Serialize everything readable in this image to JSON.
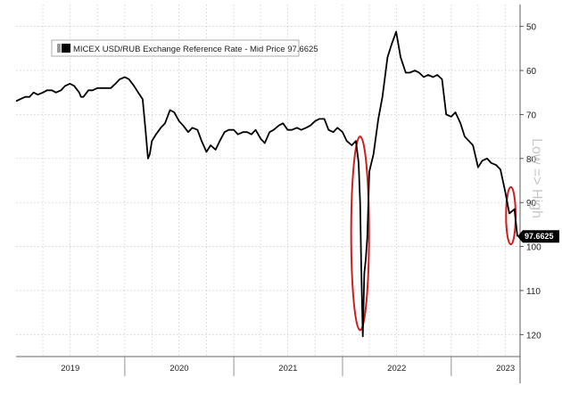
{
  "chart_data": {
    "type": "line",
    "legend": {
      "label": "MICEX USD/RUB Exchange Reference Rate - Mid Price 97.6625",
      "placement": "top-left"
    },
    "right_label": "Low => High",
    "last_value_label": "97.6625",
    "y_axis": {
      "inverted": true,
      "ylim": [
        45,
        125
      ],
      "ticks": [
        50,
        60,
        70,
        80,
        90,
        100,
        110,
        120
      ],
      "tick_labels": [
        "50",
        "60",
        "70",
        "80",
        "90",
        "100",
        "110",
        "120"
      ],
      "position": "right"
    },
    "x_axis": {
      "xlim": [
        "2019-01-01",
        "2023-08-20"
      ],
      "year_labels": [
        "2019",
        "2020",
        "2021",
        "2022",
        "2023"
      ],
      "year_label_dates": [
        "2019-07-02",
        "2020-07-02",
        "2021-07-02",
        "2022-07-02",
        "2023-07-02"
      ],
      "year_boundaries": [
        "2020-01-01",
        "2021-01-01",
        "2022-01-01",
        "2023-01-01"
      ]
    },
    "grid": true,
    "line_color": "#000000",
    "highlight_color": "#cc1f1f",
    "annotations": [
      {
        "shape": "ellipse",
        "center": [
          "2022-03-01",
          97
        ],
        "span_days": 60,
        "span_value": 44
      },
      {
        "shape": "ellipse",
        "center": [
          "2023-07-20",
          93
        ],
        "span_days": 32,
        "span_value": 13
      }
    ],
    "series": [
      {
        "x": [
          "2019-01-01",
          "2019-01-15",
          "2019-02-01",
          "2019-02-15",
          "2019-03-01",
          "2019-03-15",
          "2019-04-01",
          "2019-04-15",
          "2019-05-01",
          "2019-05-15",
          "2019-06-01",
          "2019-06-15",
          "2019-07-01",
          "2019-07-15",
          "2019-08-01",
          "2019-08-07",
          "2019-08-15",
          "2019-09-01",
          "2019-09-15",
          "2019-10-01",
          "2019-10-15",
          "2019-11-01",
          "2019-11-15",
          "2019-12-01",
          "2019-12-15",
          "2020-01-01",
          "2020-01-15",
          "2020-02-01",
          "2020-02-15",
          "2020-03-01",
          "2020-03-10",
          "2020-03-19",
          "2020-03-25",
          "2020-04-01",
          "2020-04-15",
          "2020-05-01",
          "2020-05-15",
          "2020-06-01",
          "2020-06-15",
          "2020-07-01",
          "2020-07-15",
          "2020-08-01",
          "2020-08-15",
          "2020-09-01",
          "2020-09-15",
          "2020-10-01",
          "2020-10-15",
          "2020-11-01",
          "2020-11-15",
          "2020-12-01",
          "2020-12-15",
          "2021-01-01",
          "2021-01-15",
          "2021-02-01",
          "2021-02-15",
          "2021-03-01",
          "2021-03-15",
          "2021-04-01",
          "2021-04-15",
          "2021-05-01",
          "2021-05-15",
          "2021-06-01",
          "2021-06-15",
          "2021-07-01",
          "2021-07-15",
          "2021-08-01",
          "2021-08-15",
          "2021-09-01",
          "2021-09-15",
          "2021-10-01",
          "2021-10-15",
          "2021-11-01",
          "2021-11-15",
          "2021-12-01",
          "2021-12-15",
          "2022-01-01",
          "2022-01-15",
          "2022-02-01",
          "2022-02-15",
          "2022-02-24",
          "2022-03-01",
          "2022-03-05",
          "2022-03-10",
          "2022-03-15",
          "2022-03-20",
          "2022-03-25",
          "2022-04-01",
          "2022-04-15",
          "2022-05-01",
          "2022-05-15",
          "2022-06-01",
          "2022-06-15",
          "2022-06-30",
          "2022-07-15",
          "2022-08-01",
          "2022-08-15",
          "2022-09-01",
          "2022-09-15",
          "2022-10-01",
          "2022-10-15",
          "2022-11-01",
          "2022-11-15",
          "2022-12-01",
          "2022-12-15",
          "2023-01-01",
          "2023-01-15",
          "2023-02-01",
          "2023-02-15",
          "2023-03-01",
          "2023-03-15",
          "2023-04-01",
          "2023-04-15",
          "2023-05-01",
          "2023-05-15",
          "2023-06-01",
          "2023-06-15",
          "2023-07-01",
          "2023-07-15",
          "2023-08-01",
          "2023-08-11"
        ],
        "values": [
          67,
          66.5,
          66,
          66,
          65,
          65.5,
          65,
          64.5,
          64.5,
          65,
          64.5,
          63.5,
          63,
          63.5,
          65,
          66,
          66,
          64.5,
          64.5,
          64,
          64,
          64,
          64,
          63,
          62,
          61.5,
          62,
          63.5,
          65,
          66.5,
          73,
          80,
          79,
          76,
          74.5,
          73,
          72,
          69,
          69.5,
          71.5,
          72.5,
          74,
          73,
          73.5,
          76,
          78.5,
          77,
          78,
          76,
          74,
          73.5,
          73.5,
          74.5,
          74,
          74,
          74.5,
          73.5,
          75.5,
          76.5,
          74,
          73.5,
          72.5,
          72,
          73.5,
          73.5,
          73,
          73.5,
          73,
          72.5,
          71.5,
          71,
          71,
          73.5,
          74,
          73,
          74,
          76,
          77,
          76,
          81,
          90,
          105,
          120.4,
          106,
          103,
          98,
          83,
          79,
          71,
          66,
          57,
          54,
          51.2,
          57,
          60.5,
          60.5,
          60,
          60.5,
          61.5,
          61,
          61.5,
          61,
          62,
          70,
          70.5,
          69.5,
          72,
          75,
          76,
          77,
          82,
          80.5,
          80,
          81,
          81.5,
          82.5,
          87.5,
          92.5,
          91.5,
          97.7
        ]
      }
    ]
  }
}
